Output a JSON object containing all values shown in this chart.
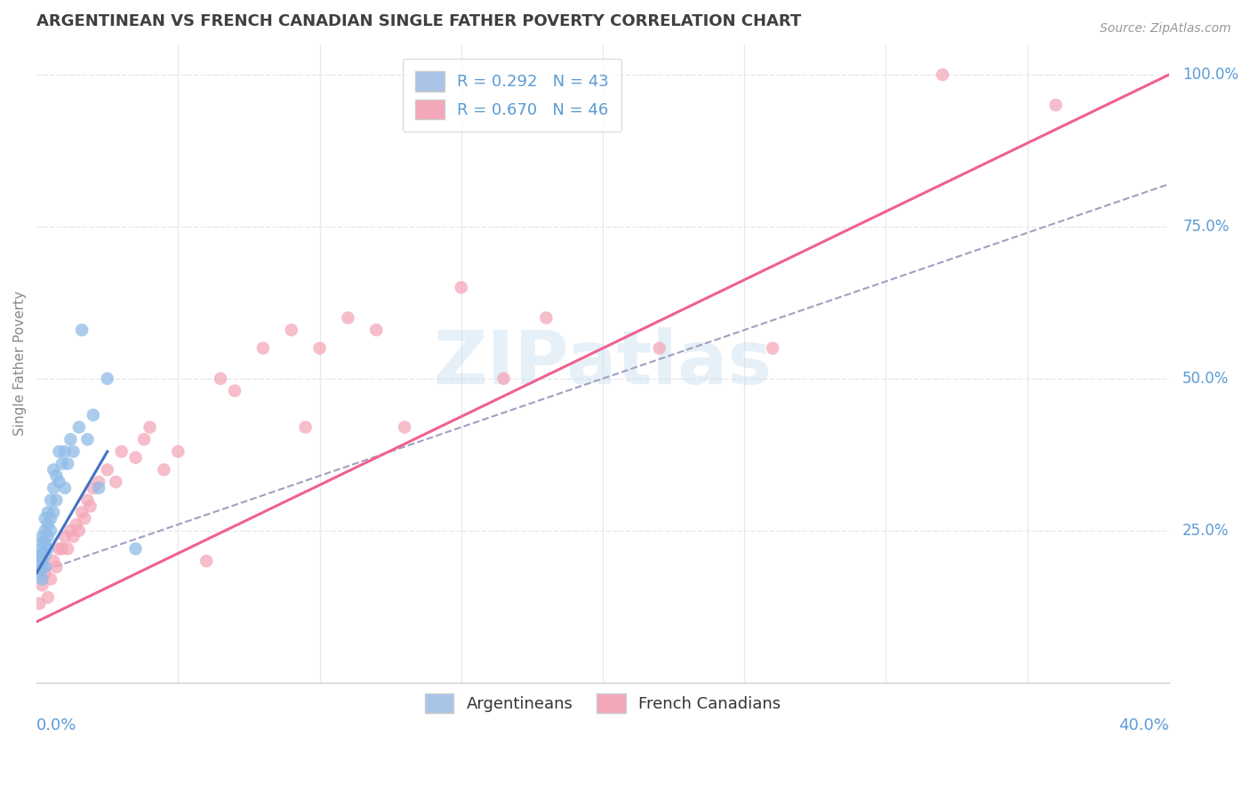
{
  "title": "ARGENTINEAN VS FRENCH CANADIAN SINGLE FATHER POVERTY CORRELATION CHART",
  "source": "Source: ZipAtlas.com",
  "ylabel": "Single Father Poverty",
  "watermark": "ZIPatlas",
  "legend_blue_label": "R = 0.292   N = 43",
  "legend_pink_label": "R = 0.670   N = 46",
  "legend_blue_color": "#aac4e8",
  "legend_pink_color": "#f4a7b9",
  "blue_dot_color": "#90bce8",
  "pink_dot_color": "#f4a7b9",
  "blue_line_color": "#4472c4",
  "pink_line_color": "#f06090",
  "dashed_line_color": "#a0a0c0",
  "title_color": "#404040",
  "axis_label_color": "#5b9bd5",
  "background_color": "#ffffff",
  "grid_color": "#e8e8e8",
  "xlim": [
    0.0,
    0.4
  ],
  "ylim": [
    0.0,
    1.05
  ],
  "blue_x": [
    0.001,
    0.001,
    0.001,
    0.001,
    0.002,
    0.002,
    0.002,
    0.002,
    0.002,
    0.002,
    0.002,
    0.003,
    0.003,
    0.003,
    0.003,
    0.003,
    0.004,
    0.004,
    0.004,
    0.004,
    0.005,
    0.005,
    0.005,
    0.006,
    0.006,
    0.006,
    0.007,
    0.007,
    0.008,
    0.008,
    0.009,
    0.01,
    0.01,
    0.011,
    0.012,
    0.013,
    0.015,
    0.016,
    0.018,
    0.02,
    0.022,
    0.025,
    0.035
  ],
  "blue_y": [
    0.18,
    0.19,
    0.2,
    0.21,
    0.17,
    0.19,
    0.2,
    0.21,
    0.22,
    0.23,
    0.24,
    0.19,
    0.21,
    0.23,
    0.25,
    0.27,
    0.22,
    0.24,
    0.26,
    0.28,
    0.25,
    0.27,
    0.3,
    0.28,
    0.32,
    0.35,
    0.3,
    0.34,
    0.33,
    0.38,
    0.36,
    0.32,
    0.38,
    0.36,
    0.4,
    0.38,
    0.42,
    0.58,
    0.4,
    0.44,
    0.32,
    0.5,
    0.22
  ],
  "pink_x": [
    0.001,
    0.002,
    0.003,
    0.004,
    0.005,
    0.006,
    0.007,
    0.008,
    0.009,
    0.01,
    0.011,
    0.012,
    0.013,
    0.014,
    0.015,
    0.016,
    0.017,
    0.018,
    0.019,
    0.02,
    0.022,
    0.025,
    0.028,
    0.03,
    0.035,
    0.038,
    0.04,
    0.045,
    0.05,
    0.06,
    0.065,
    0.07,
    0.08,
    0.09,
    0.095,
    0.1,
    0.11,
    0.12,
    0.13,
    0.15,
    0.165,
    0.18,
    0.22,
    0.26,
    0.32,
    0.36
  ],
  "pink_y": [
    0.13,
    0.16,
    0.18,
    0.14,
    0.17,
    0.2,
    0.19,
    0.22,
    0.22,
    0.24,
    0.22,
    0.25,
    0.24,
    0.26,
    0.25,
    0.28,
    0.27,
    0.3,
    0.29,
    0.32,
    0.33,
    0.35,
    0.33,
    0.38,
    0.37,
    0.4,
    0.42,
    0.35,
    0.38,
    0.2,
    0.5,
    0.48,
    0.55,
    0.58,
    0.42,
    0.55,
    0.6,
    0.58,
    0.42,
    0.65,
    0.5,
    0.6,
    0.55,
    0.55,
    1.0,
    0.95
  ],
  "blue_line_x0": 0.0,
  "blue_line_y0": 0.18,
  "blue_line_x1": 0.025,
  "blue_line_y1": 0.38,
  "pink_line_x0": 0.0,
  "pink_line_y0": 0.1,
  "pink_line_x1": 0.4,
  "pink_line_y1": 1.0,
  "dash_line_x0": 0.0,
  "dash_line_y0": 0.18,
  "dash_line_x1": 0.4,
  "dash_line_y1": 0.82
}
